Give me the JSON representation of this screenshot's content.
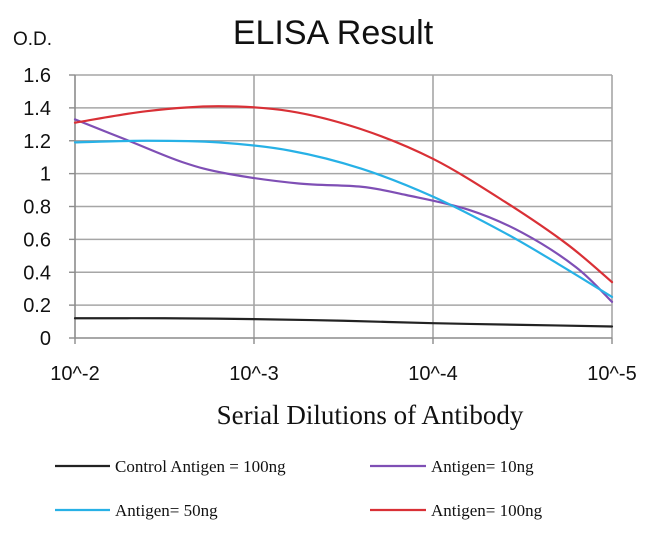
{
  "chart_data": {
    "type": "line",
    "title": "ELISA Result",
    "ylabel": "O.D.",
    "xlabel": "Serial Dilutions of Antibody",
    "categories": [
      "10^-2",
      "10^-3",
      "10^-4",
      "10^-5"
    ],
    "x_numeric": [
      0,
      1,
      2,
      3
    ],
    "ylim": [
      0,
      1.6
    ],
    "yticks": [
      0,
      0.2,
      0.4,
      0.6,
      0.8,
      1,
      1.2,
      1.4,
      1.6
    ],
    "ytick_labels": [
      "0",
      "0.2",
      "0.4",
      "0.6",
      "0.8",
      "1",
      "1.2",
      "1.4",
      "1.6"
    ],
    "grid": true,
    "legend_position": "bottom",
    "series": [
      {
        "name": "Control Antigen = 100ng",
        "color": "#222222",
        "points": [
          [
            0,
            0.12
          ],
          [
            0.5,
            0.12
          ],
          [
            1,
            0.115
          ],
          [
            1.5,
            0.105
          ],
          [
            2,
            0.09
          ],
          [
            2.5,
            0.08
          ],
          [
            3,
            0.07
          ]
        ]
      },
      {
        "name": "Antigen= 10ng",
        "color": "#7f4fb5",
        "points": [
          [
            0,
            1.33
          ],
          [
            0.3,
            1.2
          ],
          [
            0.6,
            1.07
          ],
          [
            0.85,
            1.0
          ],
          [
            1.25,
            0.94
          ],
          [
            1.6,
            0.92
          ],
          [
            1.85,
            0.87
          ],
          [
            2.2,
            0.78
          ],
          [
            2.5,
            0.64
          ],
          [
            2.8,
            0.43
          ],
          [
            3,
            0.22
          ]
        ]
      },
      {
        "name": "Antigen= 50ng",
        "color": "#27b1e6",
        "points": [
          [
            0,
            1.19
          ],
          [
            0.4,
            1.2
          ],
          [
            0.8,
            1.19
          ],
          [
            1.2,
            1.14
          ],
          [
            1.6,
            1.03
          ],
          [
            2,
            0.86
          ],
          [
            2.4,
            0.64
          ],
          [
            2.7,
            0.45
          ],
          [
            3,
            0.25
          ]
        ]
      },
      {
        "name": "Antigen= 100ng",
        "color": "#d93036",
        "points": [
          [
            0,
            1.31
          ],
          [
            0.4,
            1.38
          ],
          [
            0.8,
            1.41
          ],
          [
            1.2,
            1.38
          ],
          [
            1.6,
            1.27
          ],
          [
            2,
            1.09
          ],
          [
            2.4,
            0.83
          ],
          [
            2.75,
            0.57
          ],
          [
            3,
            0.34
          ]
        ]
      }
    ]
  }
}
